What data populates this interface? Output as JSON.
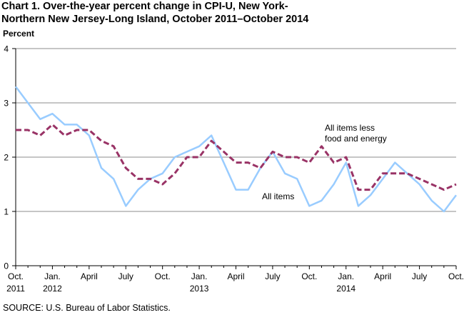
{
  "header": {
    "title_line1": "Chart 1.  Over-the-year percent change in CPI-U, New York-",
    "title_line2": "Northern New Jersey-Long Island, October 2011–October 2014"
  },
  "footer": {
    "source": "SOURCE: U.S. Bureau of Labor Statistics."
  },
  "chart_data": {
    "type": "line",
    "title": "Over-the-year percent change in CPI-U, New York-Northern New Jersey-Long Island, October 2011–October 2014",
    "ylabel": "Percent",
    "xlabel": "",
    "ylim": [
      0,
      4
    ],
    "yticks": [
      0,
      1,
      2,
      3,
      4
    ],
    "grid": true,
    "x": [
      "Oct 2011",
      "Nov 2011",
      "Dec 2011",
      "Jan 2012",
      "Feb 2012",
      "Mar 2012",
      "Apr 2012",
      "May 2012",
      "Jun 2012",
      "Jul 2012",
      "Aug 2012",
      "Sep 2012",
      "Oct 2012",
      "Nov 2012",
      "Dec 2012",
      "Jan 2013",
      "Feb 2013",
      "Mar 2013",
      "Apr 2013",
      "May 2013",
      "Jun 2013",
      "Jul 2013",
      "Aug 2013",
      "Sep 2013",
      "Oct 2013",
      "Nov 2013",
      "Dec 2013",
      "Jan 2014",
      "Feb 2014",
      "Mar 2014",
      "Apr 2014",
      "May 2014",
      "Jun 2014",
      "Jul 2014",
      "Aug 2014",
      "Sep 2014",
      "Oct 2014"
    ],
    "x_tick_labels": [
      {
        "index": 0,
        "line1": "Oct.",
        "line2": "2011"
      },
      {
        "index": 3,
        "line1": "Jan.",
        "line2": "2012"
      },
      {
        "index": 6,
        "line1": "April",
        "line2": ""
      },
      {
        "index": 9,
        "line1": "July",
        "line2": ""
      },
      {
        "index": 12,
        "line1": "Oct.",
        "line2": ""
      },
      {
        "index": 15,
        "line1": "Jan.",
        "line2": "2013"
      },
      {
        "index": 18,
        "line1": "April",
        "line2": ""
      },
      {
        "index": 21,
        "line1": "July",
        "line2": ""
      },
      {
        "index": 24,
        "line1": "Oct.",
        "line2": ""
      },
      {
        "index": 27,
        "line1": "Jan.",
        "line2": "2014"
      },
      {
        "index": 30,
        "line1": "April",
        "line2": ""
      },
      {
        "index": 33,
        "line1": "July",
        "line2": ""
      },
      {
        "index": 36,
        "line1": "Oct.",
        "line2": ""
      }
    ],
    "series": [
      {
        "name": "All items",
        "color": "#99ccff",
        "style": "solid",
        "values": [
          3.3,
          3.0,
          2.7,
          2.8,
          2.6,
          2.6,
          2.4,
          1.8,
          1.6,
          1.1,
          1.4,
          1.6,
          1.7,
          2.0,
          2.1,
          2.2,
          2.4,
          1.9,
          1.4,
          1.4,
          1.8,
          2.1,
          1.7,
          1.6,
          1.1,
          1.2,
          1.5,
          1.9,
          1.1,
          1.3,
          1.6,
          1.9,
          1.7,
          1.5,
          1.2,
          1.0,
          1.3
        ]
      },
      {
        "name": "All items less food and energy",
        "name_line1": "All items less",
        "name_line2": "food and energy",
        "color": "#993366",
        "style": "dashed",
        "values": [
          2.5,
          2.5,
          2.4,
          2.6,
          2.4,
          2.5,
          2.5,
          2.3,
          2.2,
          1.8,
          1.6,
          1.6,
          1.5,
          1.7,
          2.0,
          2.0,
          2.3,
          2.1,
          1.9,
          1.9,
          1.8,
          2.1,
          2.0,
          2.0,
          1.9,
          2.2,
          1.9,
          2.0,
          1.4,
          1.4,
          1.7,
          1.7,
          1.7,
          1.6,
          1.5,
          1.4,
          1.5
        ]
      }
    ]
  }
}
